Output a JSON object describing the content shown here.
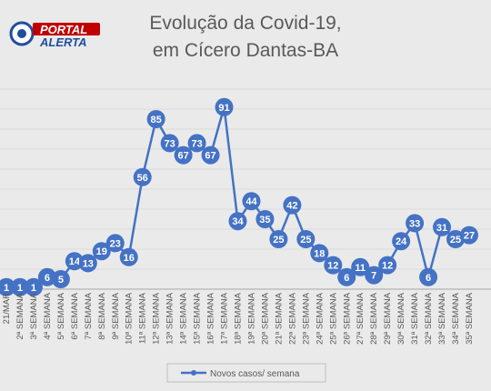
{
  "logo": {
    "line1": "PORTAL",
    "line2": "ALERTA"
  },
  "colors": {
    "series": "#4472C4",
    "grid": "#D9D9D9",
    "background": "#EAEAEA",
    "text": "#595959",
    "logo_red": "#C00000",
    "logo_blue": "#1F4E9E"
  },
  "chart_data": {
    "type": "line",
    "title": "Evolução da Covid-19, em Cícero Dantas-BA",
    "title_lines": [
      "Evolução da Covid-19,",
      "em Cícero Dantas-BA"
    ],
    "xlabel": "",
    "ylabel": "",
    "ylim": [
      0,
      100
    ],
    "grid": true,
    "legend": "bottom-center",
    "categories": [
      "21/MAR",
      "2ª SEMANA",
      "3ª SEMANA",
      "4ª SEMANA",
      "5ª SEMANA",
      "6ª SEMANA",
      "7ª SEMANA",
      "8ª SEMANA",
      "9ª SEMANA",
      "10ª SEMANA",
      "11ª SEMANA",
      "12ª SEMANA",
      "13ª SEMANA",
      "14ª SEMANA",
      "15ª SEMANA",
      "16ª SEMANA",
      "17ª SEMANA",
      "18ª SEMANA",
      "19ª SEMANA",
      "20ª SEMANA",
      "21ª SEMANA",
      "22ª SEMANA",
      "23ª SEMANA",
      "24ª SEMANA",
      "25ª SEMANA",
      "26ª SEMANA",
      "27ª SEMANA",
      "28ª SEMANA",
      "29ª SEMANA",
      "30ª SEMANA",
      "31ª SEMANA",
      "32ª SEMANA",
      "33ª SEMANA",
      "34ª SEMANA",
      "35ª SEMANA"
    ],
    "series": [
      {
        "name": "Novos casos/ semana",
        "values": [
          1,
          1,
          1,
          6,
          5,
          14,
          13,
          19,
          23,
          16,
          56,
          85,
          73,
          67,
          73,
          67,
          91,
          34,
          44,
          35,
          25,
          42,
          25,
          18,
          12,
          6,
          11,
          7,
          12,
          24,
          33,
          6,
          31,
          25,
          27
        ]
      }
    ]
  }
}
